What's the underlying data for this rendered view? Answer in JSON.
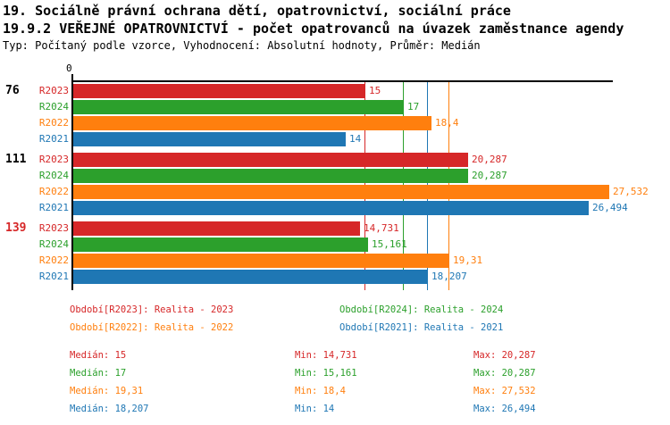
{
  "header": {
    "line1": "19. Sociálně právní ochrana dětí, opatrovnictví, sociální práce",
    "line2": "19.9.2 VEŘEJNÉ OPATROVNICTVÍ - počet opatrovanců na úvazek zaměstnance agendy",
    "line3": "Typ: Počítaný podle vzorce, Vyhodnocení: Absolutní hodnoty, Průměr: Medián"
  },
  "chart_data": {
    "type": "bar",
    "orientation": "horizontal",
    "zero_label": "0",
    "axis_range": [
      0,
      27.8
    ],
    "grid": "median-reference-lines",
    "legend_position": "bottom",
    "series": [
      {
        "id": "R2023",
        "color": "#d62728",
        "legend": "Období[R2023]: Realita - 2023"
      },
      {
        "id": "R2024",
        "color": "#2ca02c",
        "legend": "Období[R2024]: Realita - 2024"
      },
      {
        "id": "R2022",
        "color": "#ff7f0e",
        "legend": "Období[R2022]: Realita - 2022"
      },
      {
        "id": "R2021",
        "color": "#1f77b4",
        "legend": "Období[R2021]: Realita - 2021"
      }
    ],
    "row_order": [
      "R2023",
      "R2024",
      "R2022",
      "R2021"
    ],
    "groups": [
      {
        "label": "76",
        "label_color": "#000000",
        "values": {
          "R2023": 15,
          "R2024": 17,
          "R2022": 18.4,
          "R2021": 14
        },
        "displays": {
          "R2023": "15",
          "R2024": "17",
          "R2022": "18,4",
          "R2021": "14"
        }
      },
      {
        "label": "111",
        "label_color": "#000000",
        "values": {
          "R2023": 20.287,
          "R2024": 20.287,
          "R2022": 27.532,
          "R2021": 26.494
        },
        "displays": {
          "R2023": "20,287",
          "R2024": "20,287",
          "R2022": "27,532",
          "R2021": "26,494"
        }
      },
      {
        "label": "139",
        "label_color": "#d62728",
        "values": {
          "R2023": 14.731,
          "R2024": 15.161,
          "R2022": 19.31,
          "R2021": 18.207
        },
        "displays": {
          "R2023": "14,731",
          "R2024": "15,161",
          "R2022": "19,31",
          "R2021": "18,207"
        }
      }
    ],
    "medians": {
      "R2023": 15,
      "R2024": 17,
      "R2022": 19.31,
      "R2021": 18.207
    }
  },
  "stats": {
    "labels": {
      "median": "Medián:",
      "min": "Min:",
      "max": "Max:"
    },
    "rows": [
      {
        "series": "R2023",
        "color": "#d62728",
        "median": "15",
        "min": "14,731",
        "max": "20,287"
      },
      {
        "series": "R2024",
        "color": "#2ca02c",
        "median": "17",
        "min": "15,161",
        "max": "20,287"
      },
      {
        "series": "R2022",
        "color": "#ff7f0e",
        "median": "19,31",
        "min": "18,4",
        "max": "27,532"
      },
      {
        "series": "R2021",
        "color": "#1f77b4",
        "median": "18,207",
        "min": "14",
        "max": "26,494"
      }
    ]
  }
}
